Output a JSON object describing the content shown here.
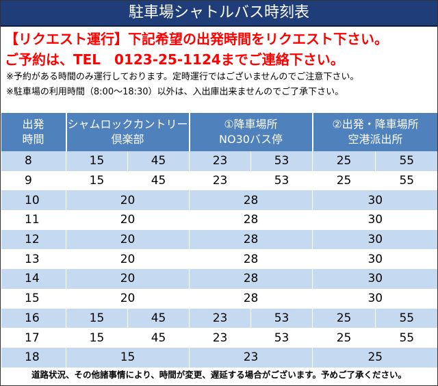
{
  "header": {
    "title": "駐車場シャトルバス時刻表"
  },
  "notices": [
    "【リクエスト運行】下記希望の出発時間をリクエスト下さい。",
    "ご予約は、TEL　0123-25-1124までご連絡下さい。"
  ],
  "notes": [
    "※予約がある時間のみ運行しております。定時運行ではございませんのでご注意下さい。",
    "※駐車場の利用時間（8:00～18:30）以外は、入出庫出来ませんのでご了承下さい。"
  ],
  "table": {
    "columns": [
      [
        "出発",
        "時間"
      ],
      [
        "シャムロックカントリー",
        "倶楽部"
      ],
      [
        "①降車場所",
        "NO30バス停"
      ],
      [
        "②出発・降車場所",
        "空港派出所"
      ]
    ],
    "rows": [
      [
        8,
        [
          15,
          45
        ],
        [
          23,
          53
        ],
        [
          25,
          55
        ]
      ],
      [
        9,
        [
          15,
          45
        ],
        [
          23,
          53
        ],
        [
          25,
          55
        ]
      ],
      [
        10,
        [
          20
        ],
        [
          28
        ],
        [
          30
        ]
      ],
      [
        11,
        [
          20
        ],
        [
          28
        ],
        [
          30
        ]
      ],
      [
        12,
        [
          20
        ],
        [
          28
        ],
        [
          30
        ]
      ],
      [
        13,
        [
          20
        ],
        [
          28
        ],
        [
          30
        ]
      ],
      [
        14,
        [
          20
        ],
        [
          28
        ],
        [
          30
        ]
      ],
      [
        15,
        [
          20
        ],
        [
          28
        ],
        [
          30
        ]
      ],
      [
        16,
        [
          15,
          45
        ],
        [
          23,
          53
        ],
        [
          25,
          55
        ]
      ],
      [
        17,
        [
          15,
          45
        ],
        [
          23,
          53
        ],
        [
          25,
          55
        ]
      ],
      [
        18,
        [
          15
        ],
        [
          23
        ],
        [
          25
        ]
      ]
    ]
  },
  "footer": "道路状況、その他諸事情により、時間が変更、遅延する場合がございます。予めご了承ください。"
}
